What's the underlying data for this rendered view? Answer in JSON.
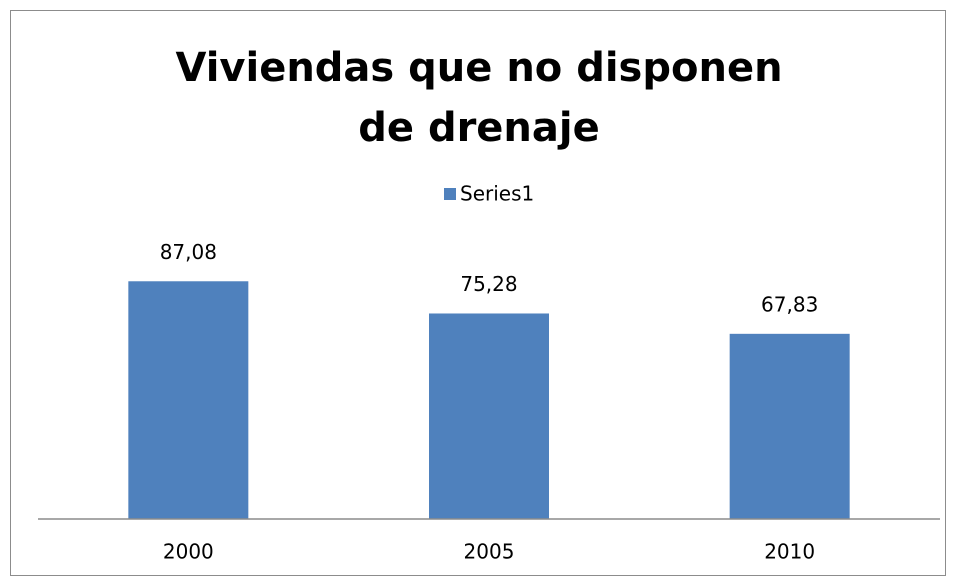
{
  "chart_data": {
    "type": "bar",
    "title": "Viviendas que no disponen de drenaje",
    "categories": [
      "2000",
      "2005",
      "2010"
    ],
    "series": [
      {
        "name": "Series1",
        "color": "#4f81bd",
        "values": [
          87.08,
          75.28,
          67.83
        ],
        "value_labels": [
          "87,08",
          "75,28",
          "67,83"
        ]
      }
    ],
    "ylim": [
      0,
      100
    ],
    "legend": "top"
  }
}
